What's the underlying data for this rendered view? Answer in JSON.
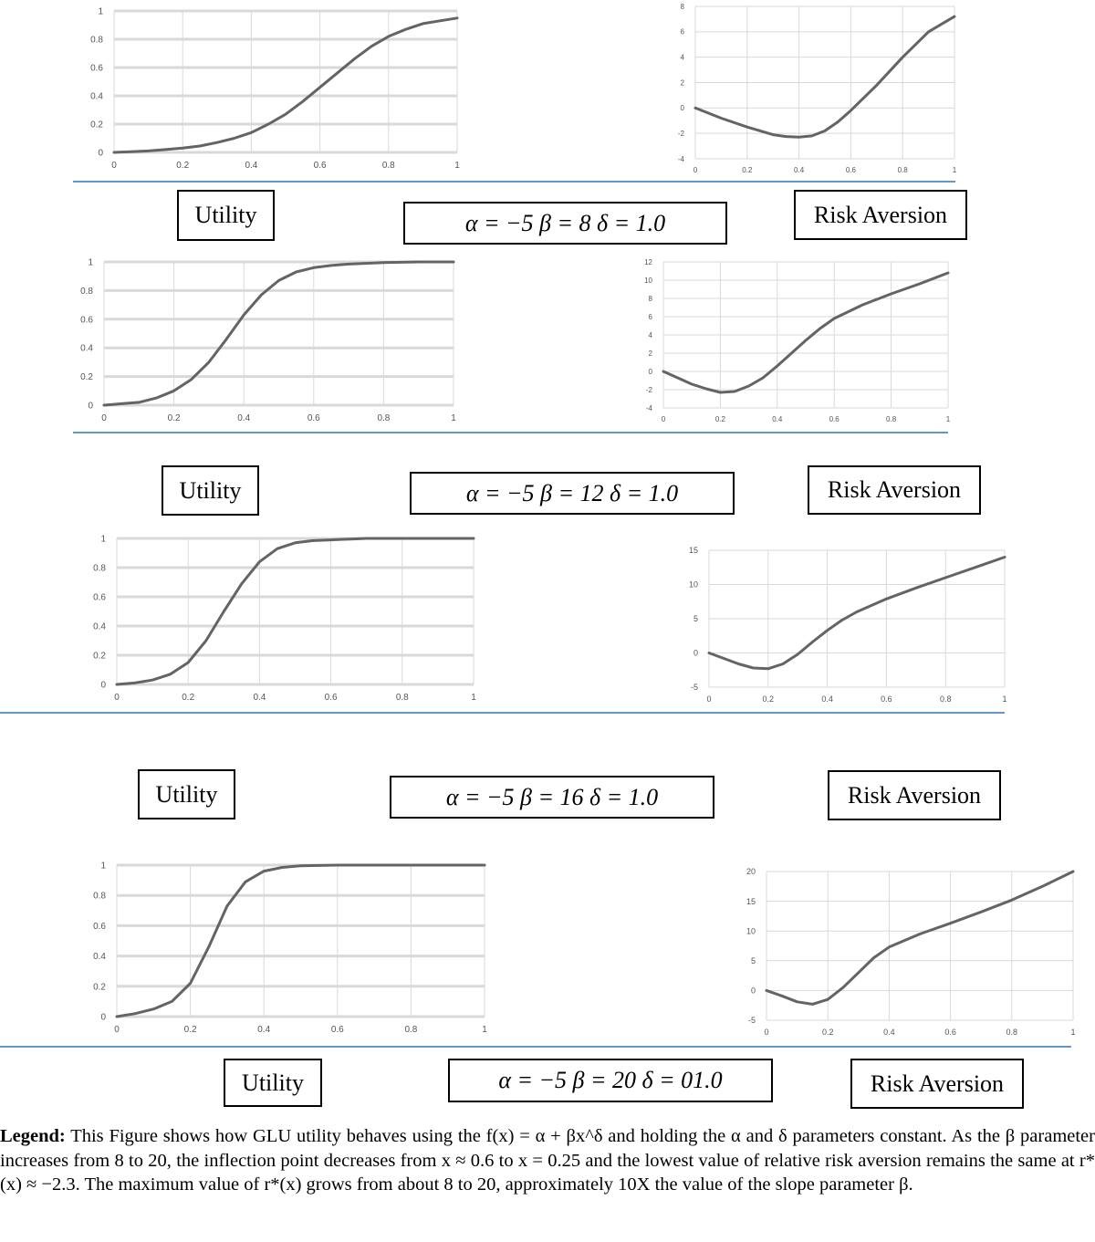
{
  "panels": [
    {
      "utility_label": "Utility",
      "params_label": "α =  −5   β = 8  δ = 1.0",
      "risk_label": "Risk Aversion"
    },
    {
      "utility_label": "Utility",
      "params_label": "α =  −5   β = 12   δ = 1.0",
      "risk_label": "Risk Aversion"
    },
    {
      "utility_label": "Utility",
      "params_label": "α =  −5   β = 16  δ = 1.0",
      "risk_label": "Risk Aversion"
    },
    {
      "utility_label": "Utility",
      "params_label": "α =  −5   β = 20   δ = 01.0",
      "risk_label": "Risk Aversion"
    }
  ],
  "legend": {
    "lead": "Legend:",
    "text": "This Figure shows how GLU utility behaves using the f(x) = α + βx^δ and holding the α and δ parameters constant.  As the β parameter increases from 8 to 20, the inflection point decreases from x ≈ 0.6 to x = 0.25 and the lowest value of relative risk aversion remains the same at r*(x) ≈ −2.3. The maximum value of r*(x) grows from about 8 to 20, approximately 10X the value of the slope parameter β."
  },
  "colors": {
    "line": "#646464",
    "grid": "#d9d9d9",
    "rule": "#2e75b6"
  },
  "chart_data": [
    {
      "type": "line",
      "name_hint": "utility beta 8",
      "x": [
        0,
        0.05,
        0.1,
        0.15,
        0.2,
        0.25,
        0.3,
        0.35,
        0.4,
        0.45,
        0.5,
        0.55,
        0.6,
        0.65,
        0.7,
        0.75,
        0.8,
        0.85,
        0.9,
        0.95,
        1
      ],
      "y": [
        0,
        0.005,
        0.01,
        0.02,
        0.03,
        0.045,
        0.07,
        0.1,
        0.14,
        0.2,
        0.27,
        0.36,
        0.46,
        0.56,
        0.66,
        0.75,
        0.82,
        0.87,
        0.91,
        0.93,
        0.95
      ],
      "xlim": [
        0,
        1
      ],
      "ylim": [
        0,
        1
      ],
      "xticks": [
        "0",
        "0.2",
        "0.4",
        "0.6",
        "0.8",
        "1"
      ],
      "yticks": [
        "0",
        "0.2",
        "0.4",
        "0.6",
        "0.8",
        "1"
      ],
      "grid": true
    },
    {
      "type": "line",
      "name_hint": "risk aversion beta 8",
      "x": [
        0,
        0.1,
        0.2,
        0.3,
        0.35,
        0.4,
        0.45,
        0.5,
        0.55,
        0.6,
        0.7,
        0.8,
        0.9,
        1
      ],
      "y": [
        0,
        -0.8,
        -1.5,
        -2.1,
        -2.25,
        -2.3,
        -2.2,
        -1.8,
        -1.1,
        -0.2,
        1.8,
        4.0,
        6.0,
        7.2
      ],
      "xlim": [
        0,
        1
      ],
      "ylim": [
        -4,
        8
      ],
      "xticks": [
        "0",
        "0.2",
        "0.4",
        "0.6",
        "0.8",
        "1"
      ],
      "yticks": [
        "-4",
        "-2",
        "0",
        "2",
        "4",
        "6",
        "8"
      ],
      "grid": true
    },
    {
      "type": "line",
      "name_hint": "utility beta 12",
      "x": [
        0,
        0.05,
        0.1,
        0.15,
        0.2,
        0.25,
        0.3,
        0.35,
        0.4,
        0.45,
        0.5,
        0.55,
        0.6,
        0.65,
        0.7,
        0.8,
        0.9,
        1
      ],
      "y": [
        0,
        0.01,
        0.02,
        0.05,
        0.1,
        0.18,
        0.3,
        0.46,
        0.63,
        0.77,
        0.87,
        0.93,
        0.96,
        0.975,
        0.985,
        0.995,
        1,
        1
      ],
      "xlim": [
        0,
        1
      ],
      "ylim": [
        0,
        1
      ],
      "xticks": [
        "0",
        "0.2",
        "0.4",
        "0.6",
        "0.8",
        "1"
      ],
      "yticks": [
        "0",
        "0.2",
        "0.4",
        "0.6",
        "0.8",
        "1"
      ],
      "grid": true
    },
    {
      "type": "line",
      "name_hint": "risk aversion beta 12",
      "x": [
        0,
        0.05,
        0.1,
        0.15,
        0.2,
        0.25,
        0.3,
        0.35,
        0.4,
        0.45,
        0.5,
        0.55,
        0.6,
        0.7,
        0.8,
        0.9,
        1
      ],
      "y": [
        0,
        -0.7,
        -1.4,
        -1.9,
        -2.3,
        -2.2,
        -1.6,
        -0.7,
        0.6,
        2.0,
        3.4,
        4.7,
        5.8,
        7.3,
        8.5,
        9.6,
        10.8
      ],
      "xlim": [
        0,
        1
      ],
      "ylim": [
        -4,
        12
      ],
      "xticks": [
        "0",
        "0.2",
        "0.4",
        "0.6",
        "0.8",
        "1"
      ],
      "yticks": [
        "-4",
        "-2",
        "0",
        "2",
        "4",
        "6",
        "8",
        "10",
        "12"
      ],
      "grid": true
    },
    {
      "type": "line",
      "name_hint": "utility beta 16",
      "x": [
        0,
        0.05,
        0.1,
        0.15,
        0.2,
        0.25,
        0.3,
        0.35,
        0.4,
        0.45,
        0.5,
        0.55,
        0.6,
        0.7,
        0.8,
        0.9,
        1
      ],
      "y": [
        0,
        0.01,
        0.03,
        0.07,
        0.15,
        0.3,
        0.5,
        0.69,
        0.84,
        0.93,
        0.97,
        0.985,
        0.99,
        1,
        1,
        1,
        1
      ],
      "xlim": [
        0,
        1
      ],
      "ylim": [
        0,
        1
      ],
      "xticks": [
        "0",
        "0.2",
        "0.4",
        "0.6",
        "0.8",
        "1"
      ],
      "yticks": [
        "0",
        "0.2",
        "0.4",
        "0.6",
        "0.8",
        "1"
      ],
      "grid": true
    },
    {
      "type": "line",
      "name_hint": "risk aversion beta 16",
      "x": [
        0,
        0.05,
        0.1,
        0.15,
        0.2,
        0.25,
        0.3,
        0.35,
        0.4,
        0.45,
        0.5,
        0.6,
        0.7,
        0.8,
        0.9,
        1
      ],
      "y": [
        0,
        -0.8,
        -1.6,
        -2.2,
        -2.3,
        -1.6,
        -0.2,
        1.6,
        3.3,
        4.8,
        6.0,
        7.9,
        9.5,
        11.0,
        12.5,
        14.0
      ],
      "xlim": [
        0,
        1
      ],
      "ylim": [
        -5,
        15
      ],
      "xticks": [
        "0",
        "0.2",
        "0.4",
        "0.6",
        "0.8",
        "1"
      ],
      "yticks": [
        "-5",
        "0",
        "5",
        "10",
        "15"
      ],
      "grid": true
    },
    {
      "type": "line",
      "name_hint": "utility beta 20",
      "x": [
        0,
        0.05,
        0.1,
        0.15,
        0.2,
        0.25,
        0.3,
        0.35,
        0.4,
        0.45,
        0.5,
        0.6,
        0.7,
        0.8,
        0.9,
        1
      ],
      "y": [
        0,
        0.02,
        0.05,
        0.1,
        0.22,
        0.46,
        0.73,
        0.89,
        0.96,
        0.985,
        0.995,
        1,
        1,
        1,
        1,
        1
      ],
      "xlim": [
        0,
        1
      ],
      "ylim": [
        0,
        1
      ],
      "xticks": [
        "0",
        "0.2",
        "0.4",
        "0.6",
        "0.8",
        "1"
      ],
      "yticks": [
        "0",
        "0.2",
        "0.4",
        "0.6",
        "0.8",
        "1"
      ],
      "grid": true
    },
    {
      "type": "line",
      "name_hint": "risk aversion beta 20",
      "x": [
        0,
        0.05,
        0.1,
        0.15,
        0.2,
        0.25,
        0.3,
        0.35,
        0.4,
        0.5,
        0.6,
        0.7,
        0.8,
        0.9,
        1
      ],
      "y": [
        0,
        -0.9,
        -1.9,
        -2.3,
        -1.5,
        0.5,
        3.0,
        5.5,
        7.3,
        9.5,
        11.3,
        13.2,
        15.2,
        17.5,
        20.0
      ],
      "xlim": [
        0,
        1
      ],
      "ylim": [
        -5,
        20
      ],
      "xticks": [
        "0",
        "0.2",
        "0.4",
        "0.6",
        "0.8",
        "1"
      ],
      "yticks": [
        "-5",
        "0",
        "5",
        "10",
        "15",
        "20"
      ],
      "grid": true
    }
  ]
}
